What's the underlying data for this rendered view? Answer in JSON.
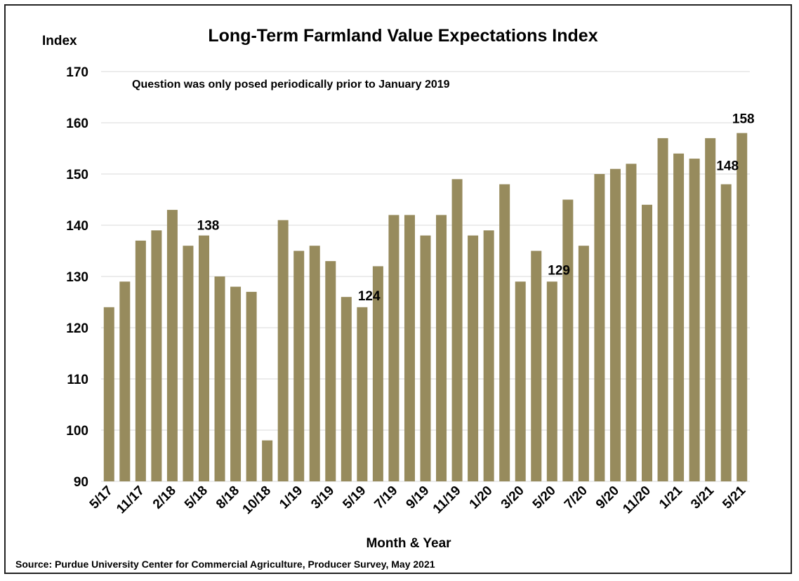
{
  "chart_data": {
    "type": "bar",
    "title": "Long-Term Farmland Value Expectations Index",
    "ylabel": "Index",
    "xlabel": "Month & Year",
    "annotation": "Question was only posed periodically prior to January 2019",
    "source": "Source: Purdue University Center for Commercial Agriculture, Producer Survey, May 2021",
    "ylim": [
      90,
      170
    ],
    "yticks": [
      90,
      100,
      110,
      120,
      130,
      140,
      150,
      160,
      170
    ],
    "grid": true,
    "bar_color": "#978b5d",
    "categories": [
      "5/17",
      "",
      "11/17",
      "",
      "2/18",
      "",
      "5/18",
      "",
      "8/18",
      "",
      "10/18",
      "",
      "1/19",
      "",
      "3/19",
      "",
      "5/19",
      "",
      "7/19",
      "",
      "9/19",
      "",
      "11/19",
      "",
      "1/20",
      "",
      "3/20",
      "",
      "5/20",
      "",
      "7/20",
      "",
      "9/20",
      "",
      "11/20",
      "",
      "1/21",
      "",
      "3/21",
      "",
      "5/21"
    ],
    "values": [
      124,
      129,
      137,
      139,
      143,
      136,
      138,
      130,
      128,
      127,
      98,
      141,
      135,
      136,
      133,
      126,
      124,
      132,
      142,
      142,
      138,
      142,
      149,
      138,
      139,
      148,
      129,
      135,
      129,
      145,
      136,
      150,
      151,
      152,
      144,
      157,
      154,
      153,
      157,
      148,
      158
    ],
    "data_labels": [
      {
        "index": 6,
        "text": "138"
      },
      {
        "index": 16,
        "text": "124"
      },
      {
        "index": 28,
        "text": "129"
      },
      {
        "index": 39,
        "text": "148"
      },
      {
        "index": 40,
        "text": "158"
      }
    ]
  }
}
